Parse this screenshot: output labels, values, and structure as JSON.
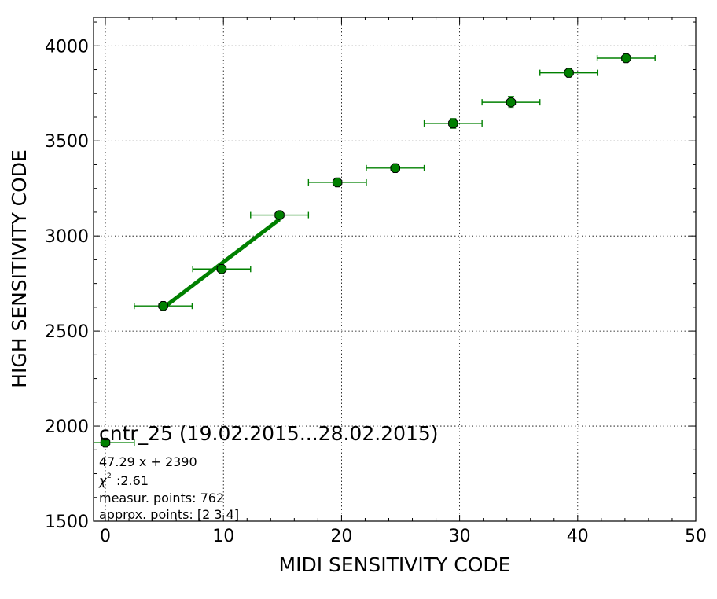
{
  "chart_data": {
    "type": "scatter",
    "title": "",
    "xlabel": "MIDI SENSITIVITY CODE",
    "ylabel": "HIGH SENSITIVITY CODE",
    "xlim": [
      -1,
      50
    ],
    "ylim": [
      1500,
      4150
    ],
    "xticks": [
      0,
      10,
      20,
      30,
      40,
      50
    ],
    "yticks": [
      1500,
      2000,
      2500,
      3000,
      3500,
      4000
    ],
    "grid": true,
    "grid_style": "dotted",
    "marker_color": "#008000",
    "fit_line_color": "#008000",
    "points": [
      {
        "x": 0.0,
        "y": 1913,
        "xerr": 2.45,
        "yerr": 8
      },
      {
        "x": 4.9,
        "y": 2632,
        "xerr": 2.45,
        "yerr": 12
      },
      {
        "x": 9.85,
        "y": 2826,
        "xerr": 2.45,
        "yerr": 14
      },
      {
        "x": 14.75,
        "y": 3110,
        "xerr": 2.45,
        "yerr": 20
      },
      {
        "x": 19.65,
        "y": 3282,
        "xerr": 2.45,
        "yerr": 10
      },
      {
        "x": 24.55,
        "y": 3357,
        "xerr": 2.45,
        "yerr": 18
      },
      {
        "x": 29.45,
        "y": 3592,
        "xerr": 2.45,
        "yerr": 25
      },
      {
        "x": 34.35,
        "y": 3703,
        "xerr": 2.45,
        "yerr": 30
      },
      {
        "x": 39.25,
        "y": 3858,
        "xerr": 2.45,
        "yerr": 15
      },
      {
        "x": 44.1,
        "y": 3935,
        "xerr": 2.45,
        "yerr": 18
      }
    ],
    "fit": {
      "slope": 47.29,
      "intercept": 2390,
      "x_range": [
        4.9,
        14.75
      ]
    },
    "annotation": {
      "title": "cntr_25 (19.02.2015...28.02.2015)",
      "equation": "47.29 x + 2390",
      "chi2": ":2.61",
      "measur_points": "measur. points: 762",
      "approx_points": "approx. points: [2 3 4]"
    }
  }
}
